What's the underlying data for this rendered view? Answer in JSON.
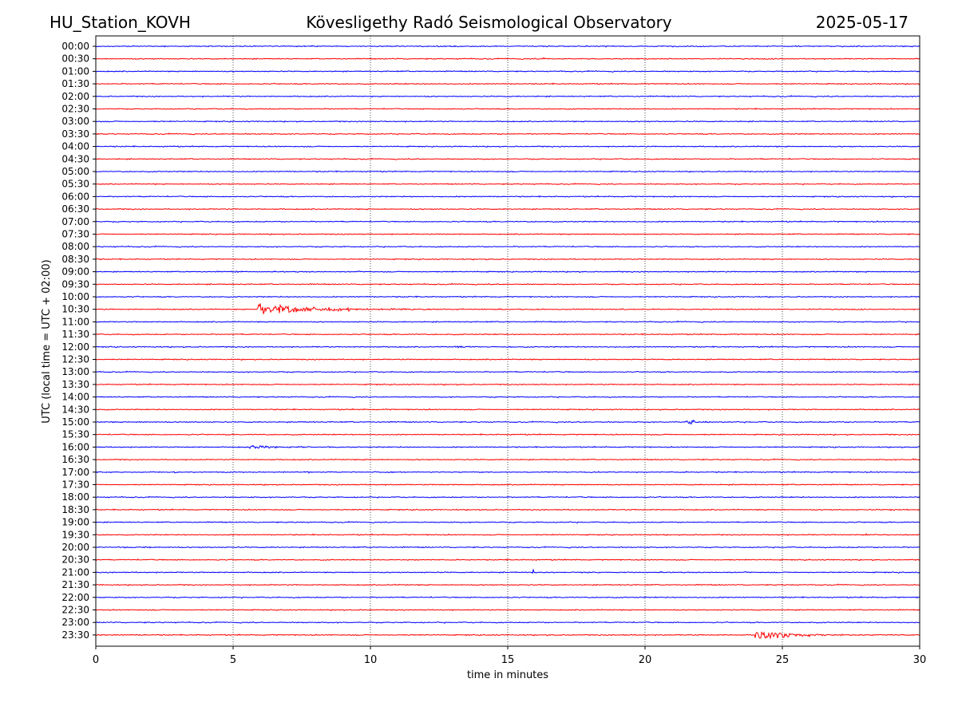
{
  "header": {
    "station": "HU_Station_KOVH",
    "observatory": "Kövesligethy Radó Seismological Observatory",
    "date": "2025-05-17"
  },
  "chart_data": {
    "type": "line",
    "title": "Kövesligethy Radó Seismological Observatory",
    "xlabel": "time in minutes",
    "ylabel": "UTC (local time = UTC + 02:00)",
    "xlim": [
      0,
      30
    ],
    "xticks": [
      0,
      5,
      10,
      15,
      20,
      25,
      30
    ],
    "x_grid": "vertical dotted lines at each 5-minute tick",
    "row_labels": [
      "00:00",
      "00:30",
      "01:00",
      "01:30",
      "02:00",
      "02:30",
      "03:00",
      "03:30",
      "04:00",
      "04:30",
      "05:00",
      "05:30",
      "06:00",
      "06:30",
      "07:00",
      "07:30",
      "08:00",
      "08:30",
      "09:00",
      "09:30",
      "10:00",
      "10:30",
      "11:00",
      "11:30",
      "12:00",
      "12:30",
      "13:00",
      "13:30",
      "14:00",
      "14:30",
      "15:00",
      "15:30",
      "16:00",
      "16:30",
      "17:00",
      "17:30",
      "18:00",
      "18:30",
      "19:00",
      "19:30",
      "20:00",
      "20:30",
      "21:00",
      "21:30",
      "22:00",
      "22:30",
      "23:00",
      "23:30"
    ],
    "trace_colors": [
      "#0000ff",
      "#ff0000"
    ],
    "background_noise_amplitude": 0.06,
    "events": [
      {
        "row": "10:30",
        "start_min": 5.9,
        "duration_min": 6.5,
        "amplitude": 0.95
      },
      {
        "row": "15:00",
        "start_min": 21.5,
        "duration_min": 1.3,
        "amplitude": 0.5
      },
      {
        "row": "16:00",
        "start_min": 5.6,
        "duration_min": 3.8,
        "amplitude": 0.25
      },
      {
        "row": "12:00",
        "start_min": 13.0,
        "duration_min": 2.5,
        "amplitude": 0.15
      },
      {
        "row": "21:00",
        "start_min": 15.9,
        "duration_min": 0.6,
        "amplitude": 0.3
      },
      {
        "row": "23:30",
        "start_min": 24.0,
        "duration_min": 4.0,
        "amplitude": 0.8
      },
      {
        "row": "00:30",
        "start_min": 16.3,
        "duration_min": 0.9,
        "amplitude": 0.15
      },
      {
        "row": "19:30",
        "start_min": 27.9,
        "duration_min": 0.6,
        "amplitude": 0.18
      },
      {
        "row": "18:30",
        "start_min": 28.9,
        "duration_min": 0.3,
        "amplitude": 0.15
      },
      {
        "row": "20:30",
        "start_min": 10.2,
        "duration_min": 0.3,
        "amplitude": 0.2
      },
      {
        "row": "16:30",
        "start_min": 29.7,
        "duration_min": 0.3,
        "amplitude": 0.2
      },
      {
        "row": "09:00",
        "start_min": 5.0,
        "duration_min": 0.6,
        "amplitude": 0.15
      }
    ]
  }
}
